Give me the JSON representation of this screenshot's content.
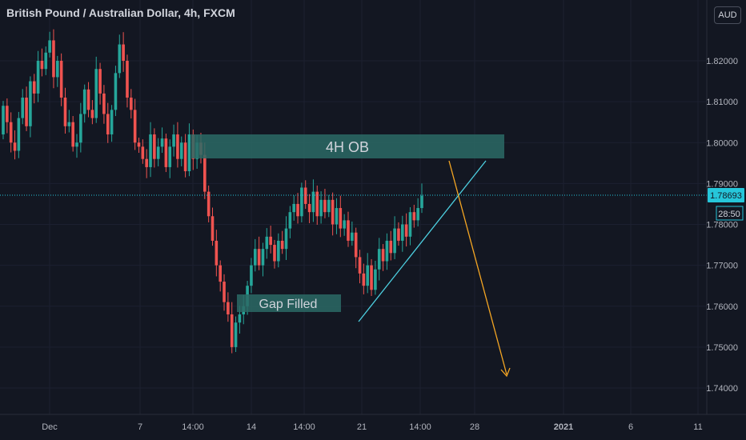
{
  "header": {
    "title": "British Pound / Australian Dollar, 4h, FXCM",
    "currency_button": "AUD"
  },
  "price_axis": {
    "last_price": "1.78693",
    "countdown": "28:50"
  },
  "annotations": {
    "order_block": "4H OB",
    "gap": "Gap Filled"
  },
  "colors": {
    "background": "#131722",
    "up": "#26a69a",
    "down": "#ef5350",
    "zone": "#2b6a65",
    "trendline": "#4dd0e1",
    "arrow": "#f5a623",
    "last_price_line": "#26c6da"
  },
  "chart_data": {
    "type": "candlestick",
    "symbol": "GBP/AUD",
    "timeframe": "4h",
    "ylim": [
      1.735,
      1.833
    ],
    "y_ticks": [
      "1.74000",
      "1.75000",
      "1.76000",
      "1.77000",
      "1.78000",
      "1.79000",
      "1.80000",
      "1.81000",
      "1.82000"
    ],
    "x_ticks": [
      "Dec",
      "7",
      "14:00",
      "14",
      "14:00",
      "21",
      "14:00",
      "28",
      "2021",
      "6",
      "11"
    ],
    "last_price": 1.78693,
    "closes": [
      1.809,
      1.805,
      1.8,
      1.798,
      1.806,
      1.811,
      1.804,
      1.815,
      1.812,
      1.82,
      1.818,
      1.822,
      1.825,
      1.816,
      1.82,
      1.811,
      1.804,
      1.805,
      1.799,
      1.8,
      1.807,
      1.813,
      1.808,
      1.806,
      1.818,
      1.812,
      1.807,
      1.802,
      1.808,
      1.817,
      1.824,
      1.82,
      1.811,
      1.808,
      1.8,
      1.799,
      1.796,
      1.794,
      1.802,
      1.796,
      1.799,
      1.801,
      1.794,
      1.799,
      1.802,
      1.796,
      1.8,
      1.793,
      1.802,
      1.796,
      1.8,
      1.797,
      1.788,
      1.782,
      1.776,
      1.77,
      1.766,
      1.761,
      1.758,
      1.75,
      1.756,
      1.758,
      1.76,
      1.765,
      1.77,
      1.774,
      1.77,
      1.774,
      1.777,
      1.775,
      1.771,
      1.776,
      1.774,
      1.779,
      1.783,
      1.785,
      1.782,
      1.789,
      1.785,
      1.783,
      1.788,
      1.782,
      1.786,
      1.783,
      1.786,
      1.78,
      1.784,
      1.779,
      1.781,
      1.776,
      1.778,
      1.772,
      1.768,
      1.765,
      1.77,
      1.764,
      1.769,
      1.774,
      1.771,
      1.776,
      1.773,
      1.779,
      1.776,
      1.78,
      1.777,
      1.783,
      1.781,
      1.784,
      1.787
    ]
  }
}
